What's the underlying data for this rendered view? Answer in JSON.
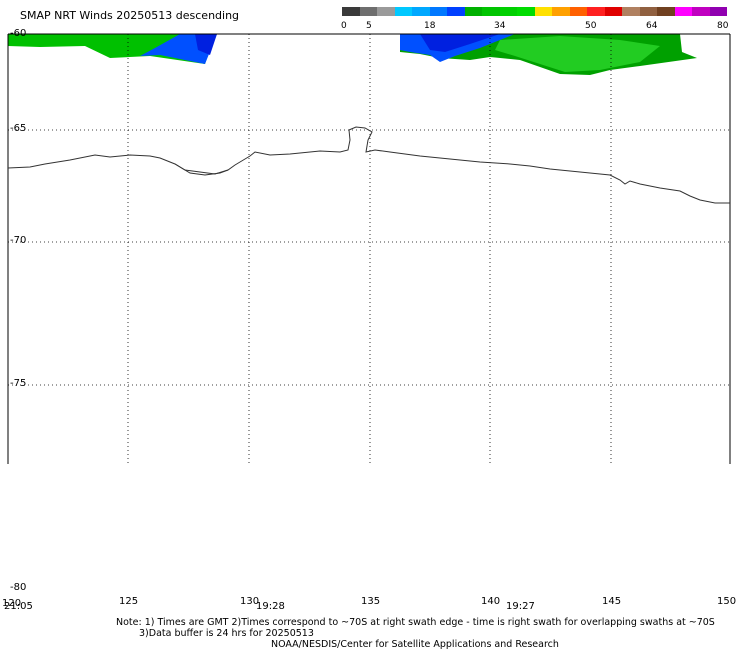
{
  "header": {
    "title": "SMAP NRT Winds  20250513 descending"
  },
  "colorbar": {
    "ticks": [
      "0",
      "5",
      "18",
      "34",
      "50",
      "64",
      "80"
    ],
    "colors": [
      "#3a3a3a",
      "#6e6e6e",
      "#9a9a9a",
      "#00c8ff",
      "#00a8ff",
      "#0078ff",
      "#0040ff",
      "#00b000",
      "#00c400",
      "#00d000",
      "#00dc00",
      "#ffe000",
      "#ffa000",
      "#ff6000",
      "#ff2020",
      "#e00000",
      "#b08060",
      "#906040",
      "#704020",
      "#ff00ff",
      "#c000c0",
      "#9000b0"
    ]
  },
  "map": {
    "lat_labels": [
      "-60",
      "-65",
      "-70",
      "-75",
      "-80"
    ],
    "lon_labels": [
      "120",
      "125",
      "130",
      "135",
      "140",
      "145",
      "150"
    ],
    "time_labels": [
      "21:05",
      "19:28",
      "19:27"
    ],
    "grid": true,
    "coastline_color": "#333333",
    "wind_colors": {
      "green": "#00c000",
      "light_green": "#22cc22",
      "dark_green": "#00a000",
      "blue": "#0050ff",
      "dark_blue": "#0020e0"
    }
  },
  "notes": {
    "line1": "Note: 1) Times are GMT 2)Times correspond to ~70S at right swath edge - time is right swath for overlapping swaths at ~70S",
    "line2": "3)Data buffer is 24 hrs for 20250513",
    "line3": "NOAA/NESDIS/Center for Satellite Applications and Research"
  }
}
